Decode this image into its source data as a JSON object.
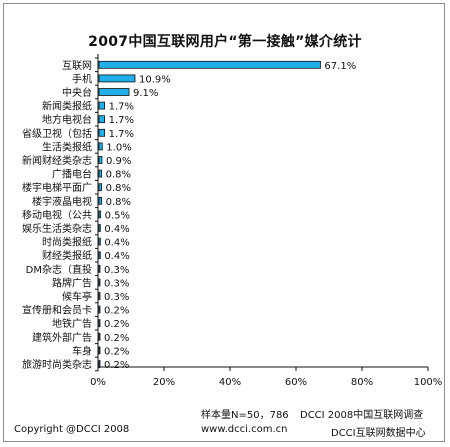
{
  "chart_data": {
    "type": "bar",
    "orientation": "horizontal",
    "title": "2007中国互联网用户“第一接触”媒介统计",
    "categories": [
      "互联网",
      "手机",
      "中央台",
      "新闻类报纸",
      "地方电视台",
      "省级卫视（包括",
      "生活类报纸",
      "新闻财经类杂志",
      "广播电台",
      "楼宇电梯平面广",
      "楼宇液晶电视",
      "移动电视（公共",
      "娱乐生活类杂志",
      "时尚类报纸",
      "财经类报纸",
      "DM杂志（直投",
      "路牌广告",
      "候车亭",
      "宣传册和会员卡",
      "地铁广告",
      "建筑外部广告",
      "车身",
      "旅游时尚类杂志"
    ],
    "values": [
      67.1,
      10.9,
      9.1,
      1.7,
      1.7,
      1.7,
      1.0,
      0.9,
      0.8,
      0.8,
      0.8,
      0.5,
      0.4,
      0.4,
      0.4,
      0.3,
      0.3,
      0.3,
      0.2,
      0.2,
      0.2,
      0.2,
      0.2
    ],
    "value_labels": [
      "67.1%",
      "10.9%",
      "9.1%",
      "1.7%",
      "1.7%",
      "1.7%",
      "1.0%",
      "0.9%",
      "0.8%",
      "0.8%",
      "0.8%",
      "0.5%",
      "0.4%",
      "0.4%",
      "0.4%",
      "0.3%",
      "0.3%",
      "0.3%",
      "0.2%",
      "0.2%",
      "0.2%",
      "0.2%",
      "0.2%"
    ],
    "xlim": [
      0,
      100
    ],
    "x_ticks": [
      "0%",
      "20%",
      "40%",
      "60%",
      "80%",
      "100%"
    ],
    "bar_color": "#1fb0e9",
    "grid": false,
    "legend": "none"
  },
  "footer": {
    "sample": "样本量N=50，786",
    "source": "DCCI 2008中国互联网调查",
    "copyright": "Copyright @DCCI 2008",
    "url": "www.dcci.com.cn",
    "center": "DCCI互联网数据中心"
  }
}
